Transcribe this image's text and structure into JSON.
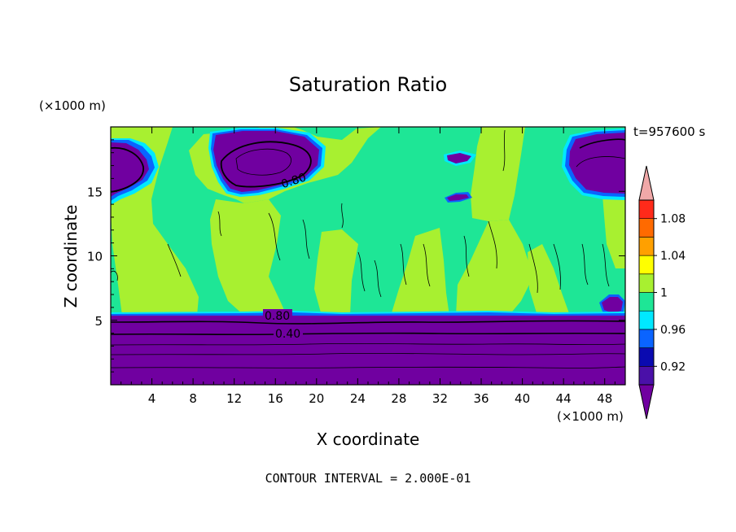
{
  "chart_data": {
    "type": "heatmap",
    "title": "Saturation Ratio",
    "xlabel": "X coordinate",
    "ylabel": "Z coordinate",
    "x_unit": "(×1000 m)",
    "y_unit": "(×1000 m)",
    "time_label": "t=957600 s",
    "footer": "CONTOUR INTERVAL = 2.000E-01",
    "xlim": [
      0,
      50
    ],
    "ylim": [
      0,
      20
    ],
    "x_ticks": [
      4,
      8,
      12,
      16,
      20,
      24,
      28,
      32,
      36,
      40,
      44,
      48
    ],
    "y_ticks": [
      5,
      10,
      15
    ],
    "contour_labels": [
      {
        "text": "0.80",
        "x": 18.0,
        "z": 5.2
      },
      {
        "text": "0.40",
        "x": 18.0,
        "z": 4.0
      },
      {
        "text": "0.80",
        "x": 17.5,
        "z": 16.0
      }
    ],
    "colorbar": {
      "levels": [
        0.92,
        0.96,
        1,
        1.04,
        1.08
      ],
      "labels": [
        "0.92",
        "0.96",
        "1",
        "1.04",
        "1.08"
      ],
      "bands": [
        {
          "range": "<0.90",
          "color": "#7000a0"
        },
        {
          "range": "0.90-0.92",
          "color": "#4a10a8"
        },
        {
          "range": "0.92-0.94",
          "color": "#0a0ab0"
        },
        {
          "range": "0.94-0.96",
          "color": "#0a64ff"
        },
        {
          "range": "0.96-0.98",
          "color": "#00e8ff"
        },
        {
          "range": "0.98-1.00",
          "color": "#1ee696"
        },
        {
          "range": "1.00-1.02",
          "color": "#a8f030"
        },
        {
          "range": "1.02-1.04",
          "color": "#ffff00"
        },
        {
          "range": "1.04-1.06",
          "color": "#ffa000"
        },
        {
          "range": "1.06-1.08",
          "color": "#ff6a00"
        },
        {
          "range": "1.08-1.10",
          "color": "#ff2a1a"
        },
        {
          "range": ">1.10",
          "color": "#f0a8a8"
        }
      ]
    },
    "regions": [
      {
        "label": "lower layer",
        "value_band": "<0.90",
        "x": [
          0,
          50
        ],
        "z": [
          0,
          5.3
        ]
      },
      {
        "label": "upper-left patch",
        "value_band": "<0.90",
        "x": [
          0,
          4.5
        ],
        "z": [
          15,
          19.5
        ]
      },
      {
        "label": "upper patch",
        "value_band": "<0.90",
        "x": [
          10,
          20
        ],
        "z": [
          14.6,
          19.8
        ]
      },
      {
        "label": "upper-right patch",
        "value_band": "<0.90",
        "x": [
          44,
          50
        ],
        "z": [
          14.6,
          19.3
        ]
      }
    ]
  }
}
